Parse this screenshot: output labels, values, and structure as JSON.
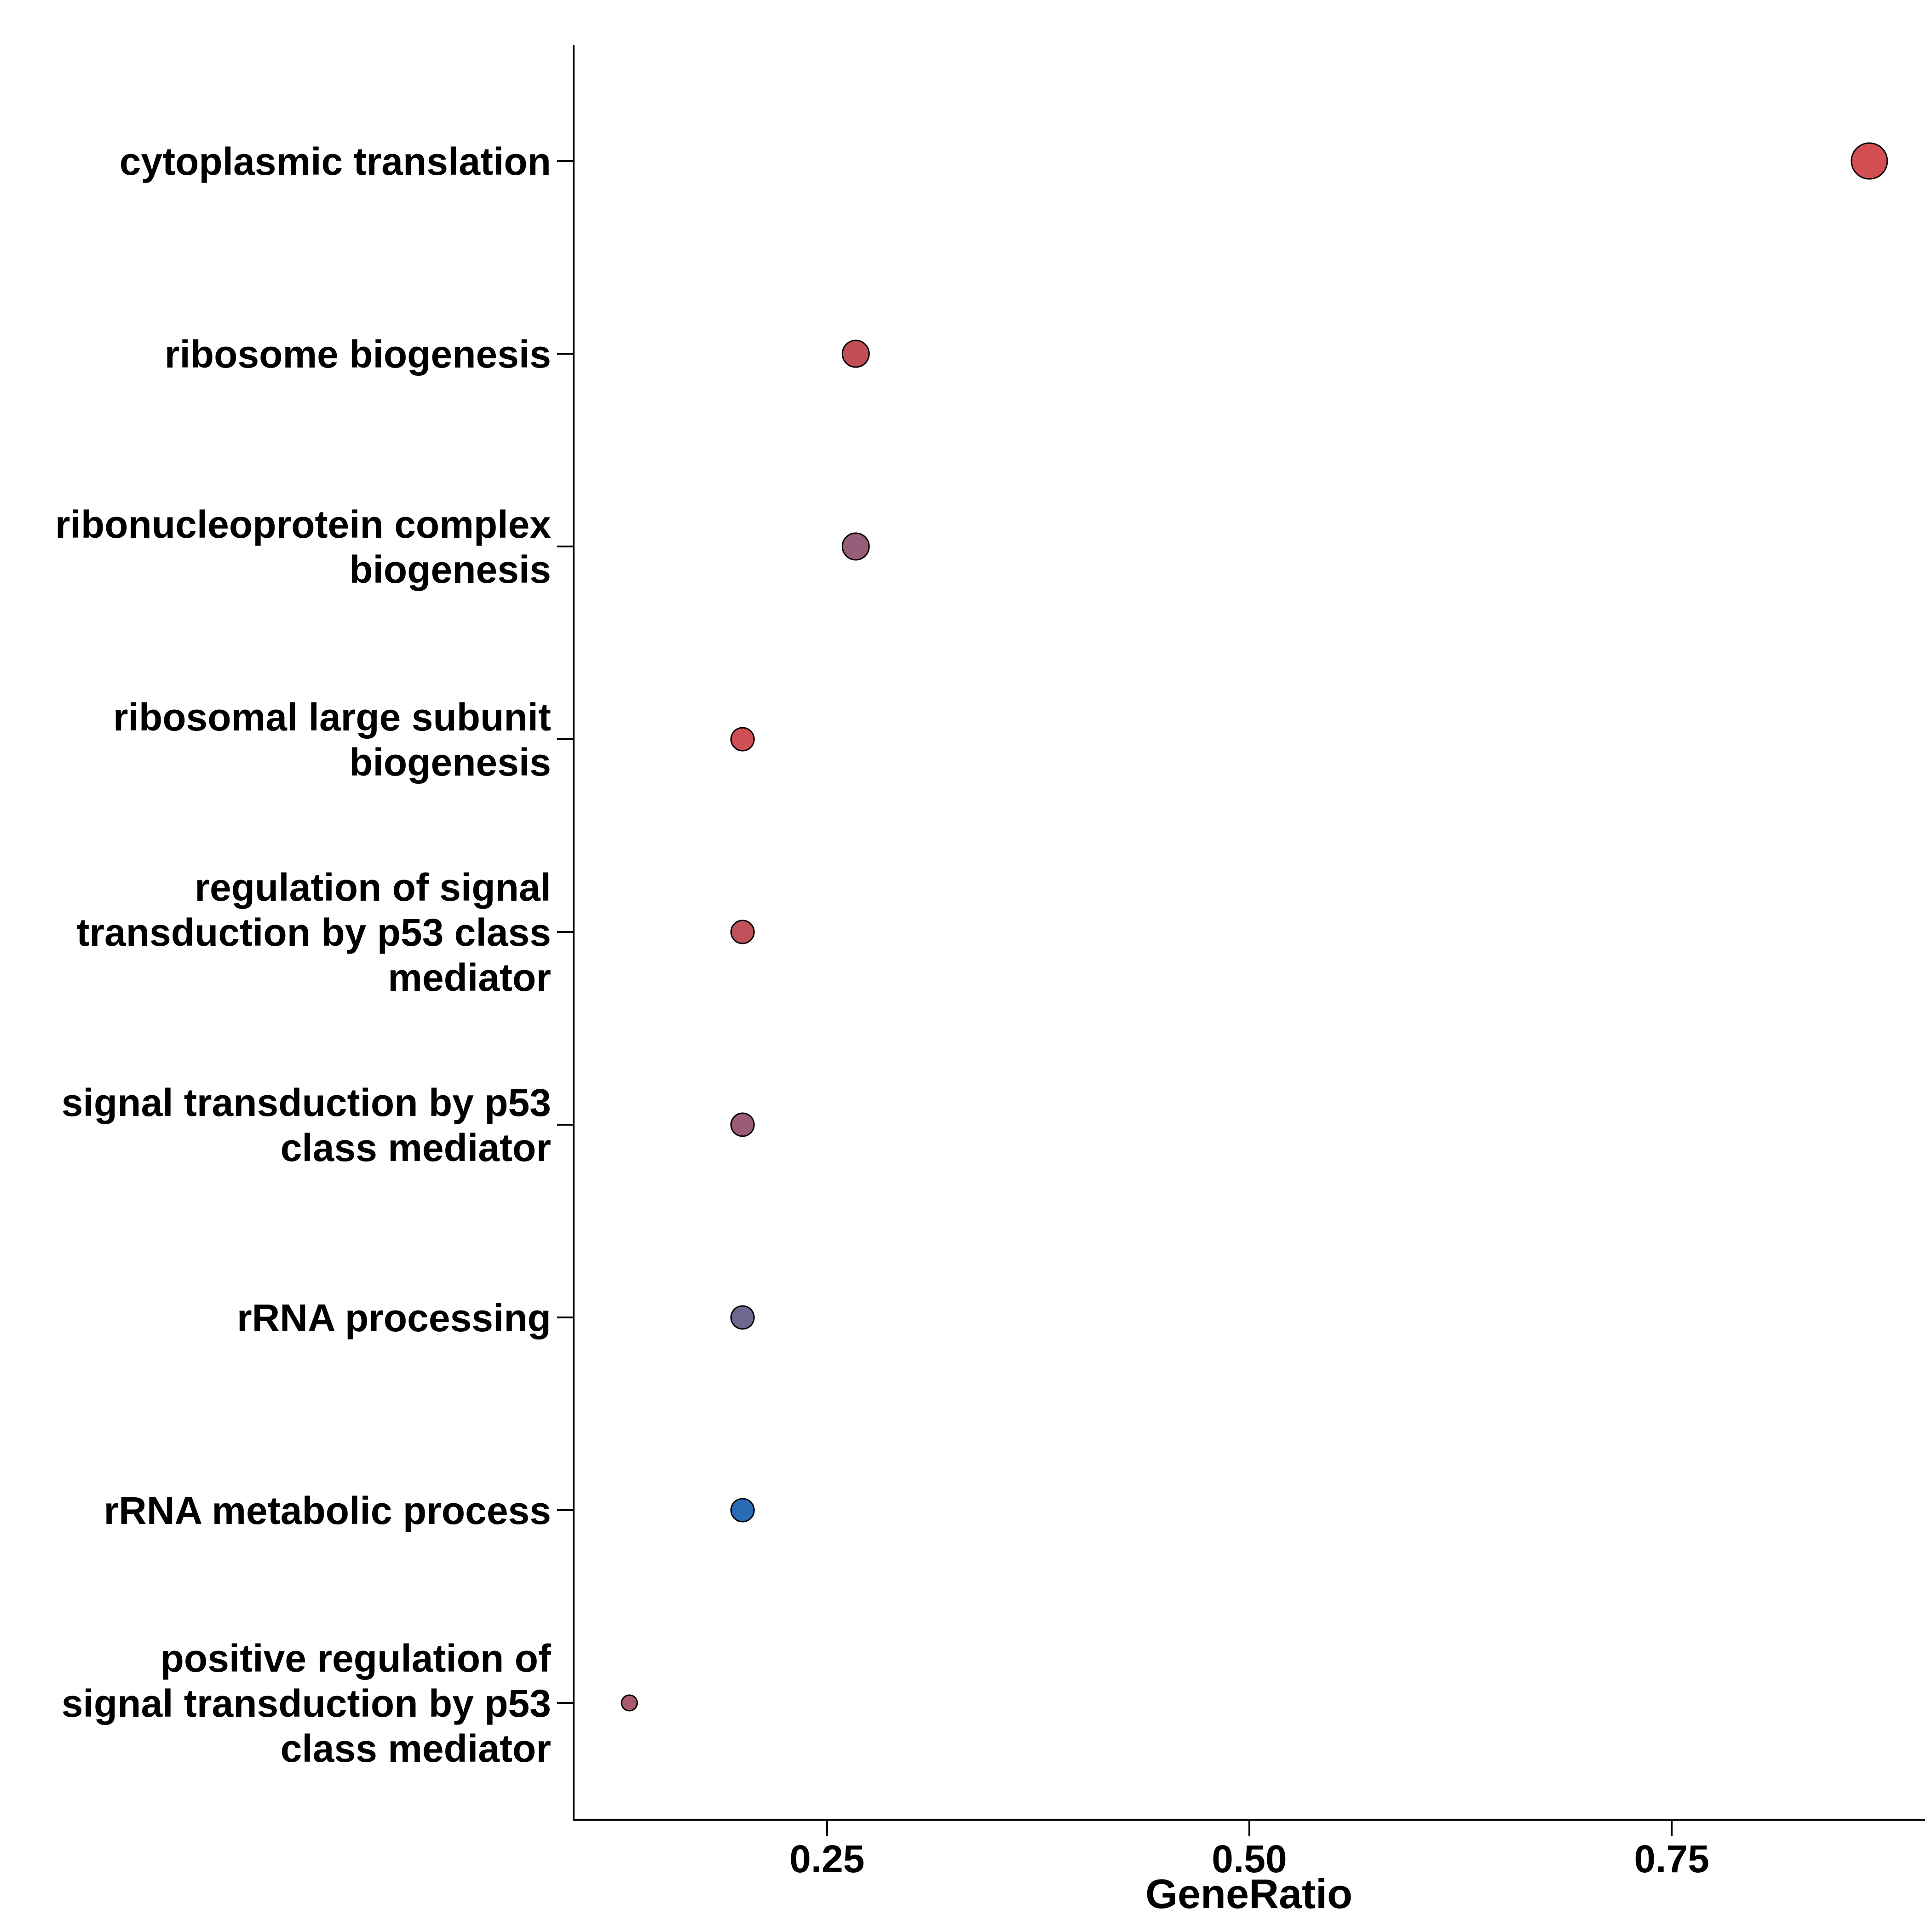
{
  "chart_data": {
    "type": "scatter",
    "xlabel": "GeneRatio",
    "ylabel": "",
    "xlim": [
      0.1,
      0.9
    ],
    "x_ticks": [
      "0.25",
      "0.50",
      "0.75"
    ],
    "grid": false,
    "legend": "none",
    "categories": [
      "cytoplasmic translation",
      "ribosome biogenesis",
      "ribonucleoprotein complex biogenesis",
      "ribosomal large subunit biogenesis",
      "regulation of signal transduction by p53 class mediator",
      "signal transduction by p53 class mediator",
      "rRNA processing",
      "rRNA metabolic process",
      "positive regulation of signal transduction by p53 class mediator"
    ],
    "points": [
      {
        "category": "cytoplasmic translation",
        "label_lines": [
          "cytoplasmic translation"
        ],
        "x": 0.867,
        "size_rank": 3,
        "color": "#d24f52"
      },
      {
        "category": "ribosome biogenesis",
        "label_lines": [
          "ribosome biogenesis"
        ],
        "x": 0.267,
        "size_rank": 2,
        "color": "#c24f58"
      },
      {
        "category": "ribonucleoprotein complex biogenesis",
        "label_lines": [
          "ribonucleoprotein complex",
          "biogenesis"
        ],
        "x": 0.267,
        "size_rank": 2,
        "color": "#965e79"
      },
      {
        "category": "ribosomal large subunit biogenesis",
        "label_lines": [
          "ribosomal large subunit",
          "biogenesis"
        ],
        "x": 0.2,
        "size_rank": 1,
        "color": "#cf4f55"
      },
      {
        "category": "regulation of signal transduction by p53 class mediator",
        "label_lines": [
          "regulation of signal",
          "transduction by p53 class",
          "mediator"
        ],
        "x": 0.2,
        "size_rank": 1,
        "color": "#c0505a"
      },
      {
        "category": "signal transduction by p53 class mediator",
        "label_lines": [
          "signal transduction by p53",
          "class mediator"
        ],
        "x": 0.2,
        "size_rank": 1,
        "color": "#9a5c76"
      },
      {
        "category": "rRNA processing",
        "label_lines": [
          "rRNA processing"
        ],
        "x": 0.2,
        "size_rank": 1,
        "color": "#6e6890"
      },
      {
        "category": "rRNA metabolic process",
        "label_lines": [
          "rRNA metabolic process"
        ],
        "x": 0.2,
        "size_rank": 1,
        "color": "#2a6bb5"
      },
      {
        "category": "positive regulation of signal transduction by p53 class mediator",
        "label_lines": [
          "positive regulation of",
          "signal transduction by p53",
          "class mediator"
        ],
        "x": 0.133,
        "size_rank": 0,
        "color": "#a85a6e"
      }
    ]
  }
}
